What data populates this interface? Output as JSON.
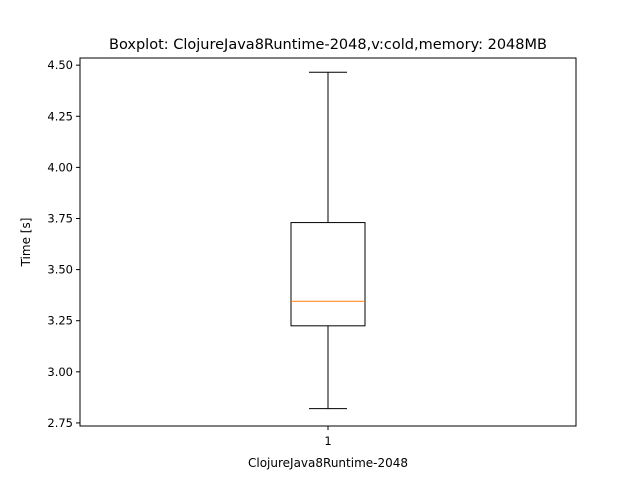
{
  "chart_data": {
    "type": "boxplot",
    "title": "Boxplot: ClojureJava8Runtime-2048,v:cold,memory: 2048MB",
    "xlabel": "ClojureJava8Runtime-2048",
    "ylabel": "Time [s]",
    "ylim": [
      2.735,
      4.535
    ],
    "yticks": [
      2.75,
      3.0,
      3.25,
      3.5,
      3.75,
      4.0,
      4.25,
      4.5
    ],
    "ytick_labels": [
      "2.75",
      "3.00",
      "3.25",
      "3.50",
      "3.75",
      "4.00",
      "4.25",
      "4.50"
    ],
    "categories": [
      "1"
    ],
    "boxes": [
      {
        "whisker_low": 2.82,
        "q1": 3.225,
        "median": 3.345,
        "q3": 3.73,
        "whisker_high": 4.465
      }
    ],
    "grid": false,
    "colors": {
      "box": "#000000",
      "median": "#ff7f0e",
      "frame": "#000000"
    }
  }
}
